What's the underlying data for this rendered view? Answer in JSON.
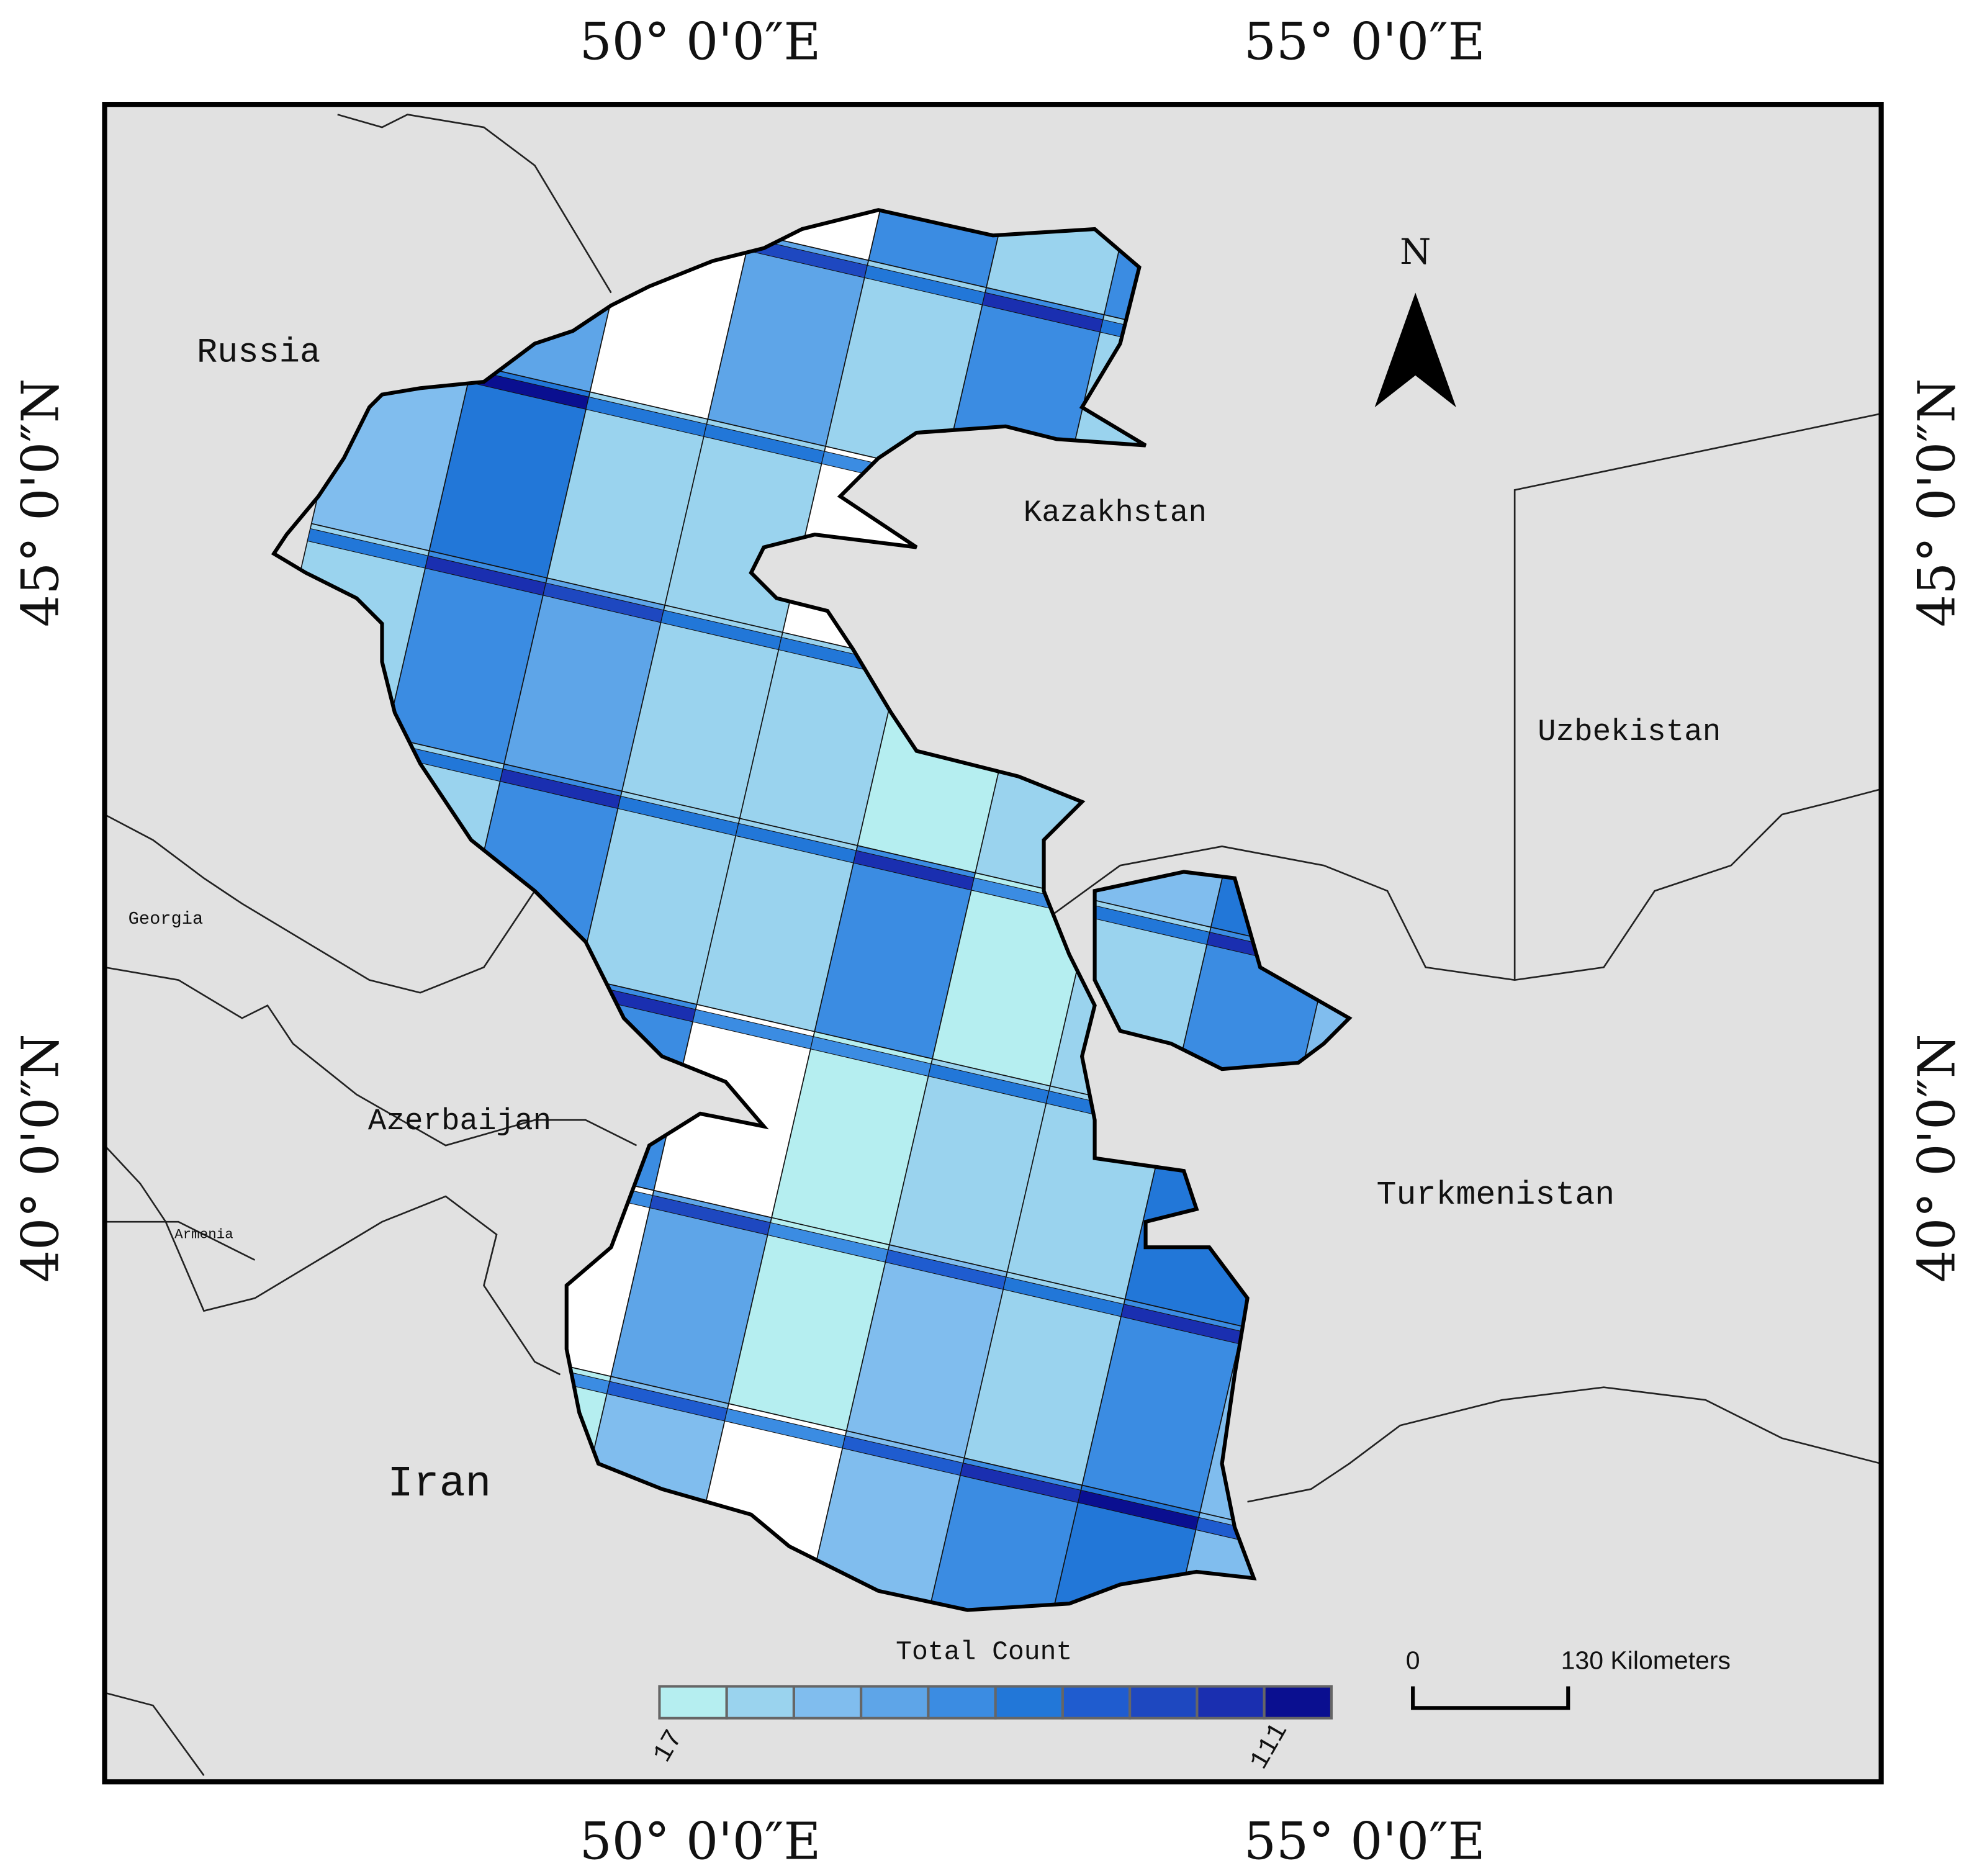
{
  "axis_labels": {
    "top": [
      "50° 0'0″E",
      "55° 0'0″E"
    ],
    "bottom": [
      "50° 0'0″E",
      "55° 0'0″E"
    ],
    "left": [
      "45° 0'0″N",
      "40° 0'0″N"
    ],
    "right": [
      "45° 0'0″N",
      "40° 0'0″N"
    ]
  },
  "countries": [
    "Russia",
    "Kazakhstan",
    "Uzbekistan",
    "Turkmenistan",
    "Azerbaijan",
    "Georgia",
    "Armenia",
    "Iran"
  ],
  "north": "N",
  "legend": {
    "title": "Total Count",
    "min": 17,
    "max": 111,
    "colors": [
      "#b5eef0",
      "#9ad3ee",
      "#80bdee",
      "#5ea5e8",
      "#3b8ce2",
      "#2277d8",
      "#1f5ccf",
      "#1e48c0",
      "#1a2fb0",
      "#0a0f90"
    ]
  },
  "scale_bar": {
    "start": "0",
    "end": "130 Kilometers"
  }
}
